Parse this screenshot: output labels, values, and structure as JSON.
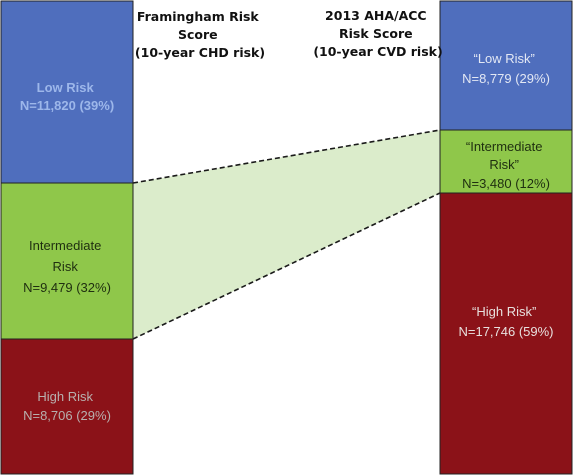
{
  "left_column": {
    "heading_lines": [
      "Framingham Risk",
      "Score",
      "(10-year CHD risk)"
    ],
    "blocks": [
      {
        "lines": [
          "Low Risk",
          "N=11,820 (39%)"
        ],
        "count": 11820,
        "percent": 39,
        "fill": "#4f6ebd",
        "text_color": "#9db7ea"
      },
      {
        "lines": [
          "Intermediate",
          "Risk",
          "N=9,479 (32%)"
        ],
        "count": 9479,
        "percent": 32,
        "fill": "#8fc74a",
        "text_color": "#1f2f10"
      },
      {
        "lines": [
          "High Risk",
          "N=8,706 (29%)"
        ],
        "count": 8706,
        "percent": 29,
        "fill": "#8b1218",
        "text_color": "#b8b0ae"
      }
    ]
  },
  "right_column": {
    "heading_lines": [
      "2013 AHA/ACC",
      "Risk Score",
      "(10-year CVD risk)"
    ],
    "blocks": [
      {
        "lines": [
          "“Low Risk”",
          "N=8,779 (29%)"
        ],
        "count": 8779,
        "percent": 29,
        "fill": "#4f6ebd",
        "text_color": "#e3e8f4"
      },
      {
        "lines": [
          "“Intermediate",
          "Risk”",
          "N=3,480 (12%)"
        ],
        "count": 3480,
        "percent": 12,
        "fill": "#8fc74a",
        "text_color": "#1f2f10"
      },
      {
        "lines": [
          "“High Risk”",
          "N=17,746 (59%)"
        ],
        "count": 17746,
        "percent": 59,
        "fill": "#8b1218",
        "text_color": "#e8e0de"
      }
    ]
  },
  "connector": {
    "fill": "#dbeccb",
    "stroke": "#1a1a1a"
  }
}
